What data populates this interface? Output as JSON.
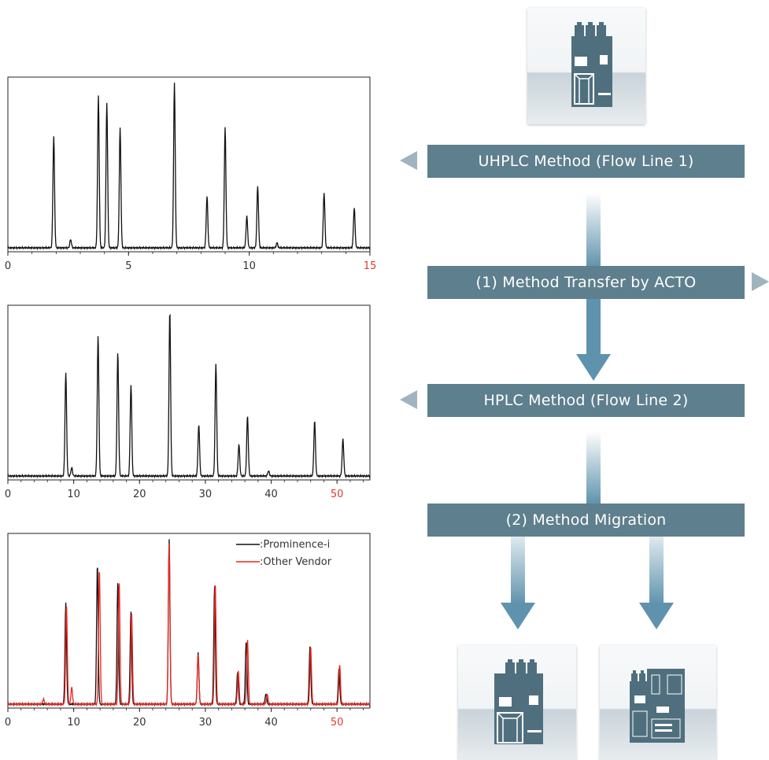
{
  "chart_data": [
    {
      "type": "line",
      "xlim": [
        0,
        15
      ],
      "x_ticks": [
        "0",
        "5",
        "10",
        "15"
      ],
      "grid": false,
      "series": [
        {
          "color": "#111111",
          "peaks": [
            {
              "x": 1.9,
              "y": 0.67
            },
            {
              "x": 2.6,
              "y": 0.05
            },
            {
              "x": 3.75,
              "y": 0.91
            },
            {
              "x": 4.1,
              "y": 0.87
            },
            {
              "x": 4.65,
              "y": 0.72
            },
            {
              "x": 6.9,
              "y": 0.99
            },
            {
              "x": 8.25,
              "y": 0.31
            },
            {
              "x": 9.0,
              "y": 0.72
            },
            {
              "x": 9.9,
              "y": 0.19
            },
            {
              "x": 10.35,
              "y": 0.37
            },
            {
              "x": 11.15,
              "y": 0.03
            },
            {
              "x": 13.1,
              "y": 0.33
            },
            {
              "x": 14.35,
              "y": 0.24
            }
          ]
        }
      ]
    },
    {
      "type": "line",
      "xlim": [
        0,
        55
      ],
      "x_ticks": [
        "0",
        "10",
        "20",
        "30",
        "40",
        "50"
      ],
      "grid": false,
      "series": [
        {
          "color": "#111111",
          "peaks": [
            {
              "x": 8.8,
              "y": 0.62
            },
            {
              "x": 9.7,
              "y": 0.05
            },
            {
              "x": 13.7,
              "y": 0.84
            },
            {
              "x": 16.7,
              "y": 0.74
            },
            {
              "x": 18.7,
              "y": 0.55
            },
            {
              "x": 24.6,
              "y": 0.99
            },
            {
              "x": 29.0,
              "y": 0.31
            },
            {
              "x": 31.6,
              "y": 0.67
            },
            {
              "x": 35.1,
              "y": 0.19
            },
            {
              "x": 36.4,
              "y": 0.36
            },
            {
              "x": 39.6,
              "y": 0.03
            },
            {
              "x": 46.6,
              "y": 0.33
            },
            {
              "x": 50.9,
              "y": 0.22
            }
          ]
        }
      ]
    },
    {
      "type": "line",
      "xlim": [
        0,
        55
      ],
      "x_ticks": [
        "0",
        "10",
        "20",
        "30",
        "40",
        "50"
      ],
      "grid": false,
      "legend_position": "top-right",
      "series": [
        {
          "name": ":Prominence-i",
          "color": "#111111",
          "peaks": [
            {
              "x": 8.8,
              "y": 0.61
            },
            {
              "x": 13.6,
              "y": 0.84
            },
            {
              "x": 16.7,
              "y": 0.73
            },
            {
              "x": 18.7,
              "y": 0.56
            },
            {
              "x": 24.5,
              "y": 0.99
            },
            {
              "x": 28.9,
              "y": 0.31
            },
            {
              "x": 31.4,
              "y": 0.71
            },
            {
              "x": 34.9,
              "y": 0.19
            },
            {
              "x": 36.2,
              "y": 0.38
            },
            {
              "x": 39.2,
              "y": 0.06
            },
            {
              "x": 45.9,
              "y": 0.35
            },
            {
              "x": 50.3,
              "y": 0.21
            }
          ]
        },
        {
          "name": ":Other Vendor",
          "color": "#e8261f",
          "peaks": [
            {
              "x": 5.4,
              "y": 0.03
            },
            {
              "x": 8.9,
              "y": 0.6
            },
            {
              "x": 9.7,
              "y": 0.1
            },
            {
              "x": 13.9,
              "y": 0.81
            },
            {
              "x": 16.9,
              "y": 0.74
            },
            {
              "x": 18.8,
              "y": 0.55
            },
            {
              "x": 24.5,
              "y": 0.96
            },
            {
              "x": 28.9,
              "y": 0.3
            },
            {
              "x": 31.5,
              "y": 0.73
            },
            {
              "x": 35.0,
              "y": 0.2
            },
            {
              "x": 36.4,
              "y": 0.39
            },
            {
              "x": 39.4,
              "y": 0.06
            },
            {
              "x": 46.0,
              "y": 0.34
            },
            {
              "x": 50.4,
              "y": 0.24
            }
          ]
        }
      ]
    }
  ],
  "flow": {
    "step_uhplc": "UHPLC Method (Flow Line 1)",
    "step_transfer": "(1) Method Transfer by ACTO",
    "step_hplc": "HPLC Method (Flow Line 2)",
    "step_migration": "(2) Method Migration"
  },
  "colors": {
    "band": "#5e7f8d",
    "side_triangle": "#9fb4be",
    "arrow": "#5f93ad",
    "device_dark": "#4f6f7e",
    "last_tick": "#e03a2f"
  },
  "icons": {
    "instrument_top": "uhplc-instrument-icon",
    "instrument_left": "hplc-instrument-icon",
    "instrument_right": "other-vendor-instrument-icon"
  }
}
